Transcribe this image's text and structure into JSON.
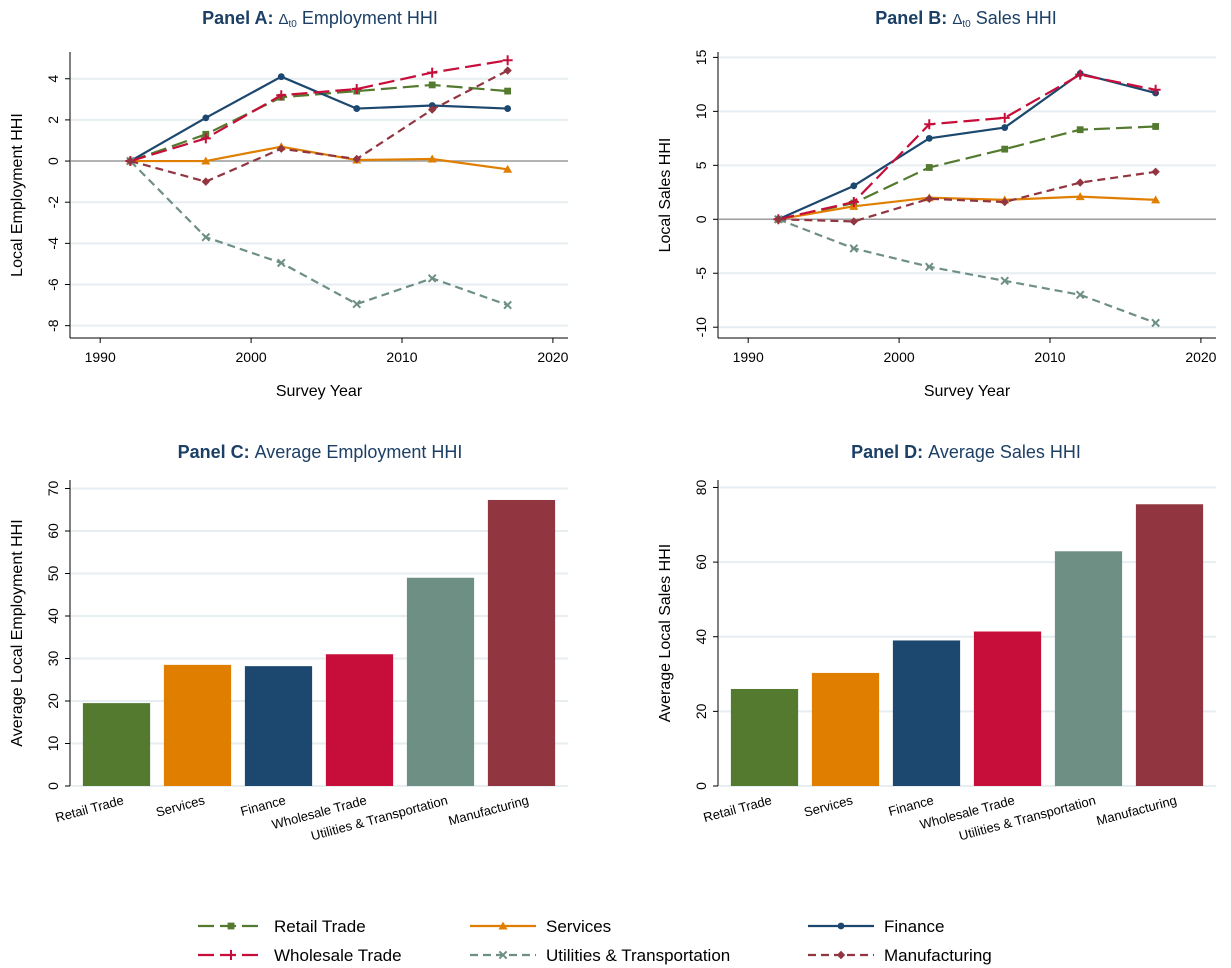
{
  "colors": {
    "retail": "#537A2E",
    "services": "#E07E00",
    "finance": "#1C476E",
    "wholesale": "#C70E3A",
    "utilities": "#6E8F83",
    "manufacturing": "#913540",
    "zero_line": "#A0A0A0",
    "grid": "#E6EEF1",
    "title": "#1C3F66"
  },
  "chart_data": [
    {
      "panel": "A",
      "type": "line",
      "title_bold": "Panel A:",
      "title_delta": "Δ",
      "title_sub": "t0",
      "title_rest": " Employment HHI",
      "xlabel": "Survey Year",
      "ylabel": "Local Employment HHI",
      "xlim": [
        1988,
        2021
      ],
      "ylim": [
        -8.6,
        5.3
      ],
      "xticks": [
        1990,
        2000,
        2010,
        2020
      ],
      "yticks": [
        -8,
        -6,
        -4,
        -2,
        0,
        2,
        4
      ],
      "grid": true,
      "x": [
        1992,
        1997,
        2002,
        2007,
        2012,
        2017
      ],
      "series": [
        {
          "name": "Retail Trade",
          "key": "retail",
          "values": [
            0,
            1.3,
            3.1,
            3.4,
            3.7,
            3.4
          ]
        },
        {
          "name": "Services",
          "key": "services",
          "values": [
            0,
            0.0,
            0.7,
            0.05,
            0.1,
            -0.4
          ]
        },
        {
          "name": "Finance",
          "key": "finance",
          "values": [
            0,
            2.1,
            4.1,
            2.55,
            2.7,
            2.55
          ]
        },
        {
          "name": "Wholesale Trade",
          "key": "wholesale",
          "values": [
            0,
            1.1,
            3.2,
            3.5,
            4.3,
            4.9
          ]
        },
        {
          "name": "Utilities & Transportation",
          "key": "utilities",
          "values": [
            0,
            -3.7,
            -4.95,
            -6.95,
            -5.7,
            -7.0
          ]
        },
        {
          "name": "Manufacturing",
          "key": "manufacturing",
          "values": [
            0,
            -1.0,
            0.6,
            0.1,
            2.5,
            4.4
          ]
        }
      ]
    },
    {
      "panel": "B",
      "type": "line",
      "title_bold": "Panel B:",
      "title_delta": "Δ",
      "title_sub": "t0",
      "title_rest": " Sales HHI",
      "xlabel": "Survey Year",
      "ylabel": "Local Sales HHI",
      "xlim": [
        1988,
        2021
      ],
      "ylim": [
        -11,
        15.5
      ],
      "xticks": [
        1990,
        2000,
        2010,
        2020
      ],
      "yticks": [
        -10,
        -5,
        0,
        5,
        10,
        15
      ],
      "grid": true,
      "x": [
        1992,
        1997,
        2002,
        2007,
        2012,
        2017
      ],
      "series": [
        {
          "name": "Retail Trade",
          "key": "retail",
          "values": [
            0,
            1.5,
            4.8,
            6.5,
            8.3,
            8.6
          ]
        },
        {
          "name": "Services",
          "key": "services",
          "values": [
            0,
            1.2,
            2.0,
            1.8,
            2.1,
            1.8
          ]
        },
        {
          "name": "Finance",
          "key": "finance",
          "values": [
            0,
            3.1,
            7.5,
            8.5,
            13.5,
            11.7
          ]
        },
        {
          "name": "Wholesale Trade",
          "key": "wholesale",
          "values": [
            0,
            1.6,
            8.8,
            9.4,
            13.4,
            12.0
          ]
        },
        {
          "name": "Utilities & Transportation",
          "key": "utilities",
          "values": [
            0,
            -2.7,
            -4.4,
            -5.7,
            -7.0,
            -9.6
          ]
        },
        {
          "name": "Manufacturing",
          "key": "manufacturing",
          "values": [
            0,
            -0.2,
            1.9,
            1.6,
            3.4,
            4.4
          ]
        }
      ]
    },
    {
      "panel": "C",
      "type": "bar",
      "title_bold": "Panel C:",
      "title_rest": " Average Employment HHI",
      "ylabel": "Average Local Employment HHI",
      "ylim": [
        0,
        72
      ],
      "yticks": [
        0,
        10,
        20,
        30,
        40,
        50,
        60,
        70
      ],
      "grid": true,
      "categories": [
        "Retail Trade",
        "Services",
        "Finance",
        "Wholesale Trade",
        "Utilities & Transportation",
        "Manufacturing"
      ],
      "keys": [
        "retail",
        "services",
        "finance",
        "wholesale",
        "utilities",
        "manufacturing"
      ],
      "values": [
        19.5,
        28.5,
        28.2,
        31.0,
        49.0,
        67.3
      ]
    },
    {
      "panel": "D",
      "type": "bar",
      "title_bold": "Panel D:",
      "title_rest": " Average Sales HHI",
      "ylabel": "Average Local Sales HHI",
      "ylim": [
        0,
        82
      ],
      "yticks": [
        0,
        20,
        40,
        60,
        80
      ],
      "grid": true,
      "categories": [
        "Retail Trade",
        "Services",
        "Finance",
        "Wholesale Trade",
        "Utilities & Transportation",
        "Manufacturing"
      ],
      "keys": [
        "retail",
        "services",
        "finance",
        "wholesale",
        "utilities",
        "manufacturing"
      ],
      "values": [
        26.0,
        30.3,
        39.0,
        41.4,
        62.9,
        75.5
      ]
    }
  ],
  "legend": {
    "position": "bottom",
    "items": [
      {
        "label": "Retail Trade",
        "key": "retail"
      },
      {
        "label": "Services",
        "key": "services"
      },
      {
        "label": "Finance",
        "key": "finance"
      },
      {
        "label": "Wholesale Trade",
        "key": "wholesale"
      },
      {
        "label": "Utilities & Transportation",
        "key": "utilities"
      },
      {
        "label": "Manufacturing",
        "key": "manufacturing"
      }
    ]
  }
}
